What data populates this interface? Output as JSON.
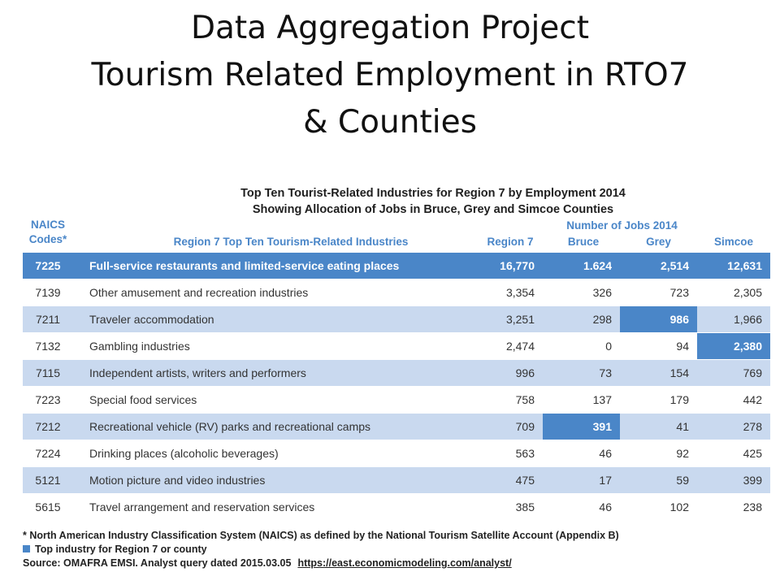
{
  "slide": {
    "title_lines": [
      "Data Aggregation Project",
      "Tourism Related Employment in RTO7",
      "& Counties"
    ]
  },
  "table": {
    "title_lines": [
      "Top Ten Tourist-Related Industries for Region 7 by Employment 2014",
      "Showing Allocation of Jobs in Bruce, Grey and Simcoe Counties"
    ],
    "headers": {
      "naics_line1": "NAICS",
      "naics_line2": "Codes*",
      "industry": "Region 7 Top Ten Tourism-Related Industries",
      "jobs_group": "Number of Jobs 2014",
      "region7": "Region 7",
      "bruce": "Bruce",
      "grey": "Grey",
      "simcoe": "Simcoe"
    },
    "rows": [
      {
        "code": "7225",
        "name": "Full-service restaurants and limited-service eating places",
        "region7": "16,770",
        "bruce": "1.624",
        "grey": "2,514",
        "simcoe": "12,631"
      },
      {
        "code": "7139",
        "name": "Other amusement and recreation industries",
        "region7": "3,354",
        "bruce": "326",
        "grey": "723",
        "simcoe": "2,305"
      },
      {
        "code": "7211",
        "name": "Traveler accommodation",
        "region7": "3,251",
        "bruce": "298",
        "grey": "986",
        "simcoe": "1,966"
      },
      {
        "code": "7132",
        "name": "Gambling industries",
        "region7": "2,474",
        "bruce": "0",
        "grey": "94",
        "simcoe": "2,380"
      },
      {
        "code": "7115",
        "name": "Independent artists, writers and performers",
        "region7": "996",
        "bruce": "73",
        "grey": "154",
        "simcoe": "769"
      },
      {
        "code": "7223",
        "name": "Special food services",
        "region7": "758",
        "bruce": "137",
        "grey": "179",
        "simcoe": "442"
      },
      {
        "code": "7212",
        "name": "Recreational vehicle (RV) parks and recreational camps",
        "region7": "709",
        "bruce": "391",
        "grey": "41",
        "simcoe": "278"
      },
      {
        "code": "7224",
        "name": "Drinking places (alcoholic beverages)",
        "region7": "563",
        "bruce": "46",
        "grey": "92",
        "simcoe": "425"
      },
      {
        "code": "5121",
        "name": "Motion picture and video industries",
        "region7": "475",
        "bruce": "17",
        "grey": "59",
        "simcoe": "399"
      },
      {
        "code": "5615",
        "name": "Travel arrangement and reservation services",
        "region7": "385",
        "bruce": "46",
        "grey": "102",
        "simcoe": "238"
      }
    ]
  },
  "notes": {
    "footnote": "* North American Industry Classification System (NAICS) as defined by the National Tourism Satellite Account (Appendix B)",
    "legend": "Top industry for Region 7 or county",
    "source": "Source:  OMAFRA EMSI.  Analyst query dated 2015.03.05",
    "link": "https://east.economicmodeling.com/analyst/"
  },
  "colors": {
    "highlight": "#4a86c8",
    "alt_row": "#c9d9ef"
  }
}
